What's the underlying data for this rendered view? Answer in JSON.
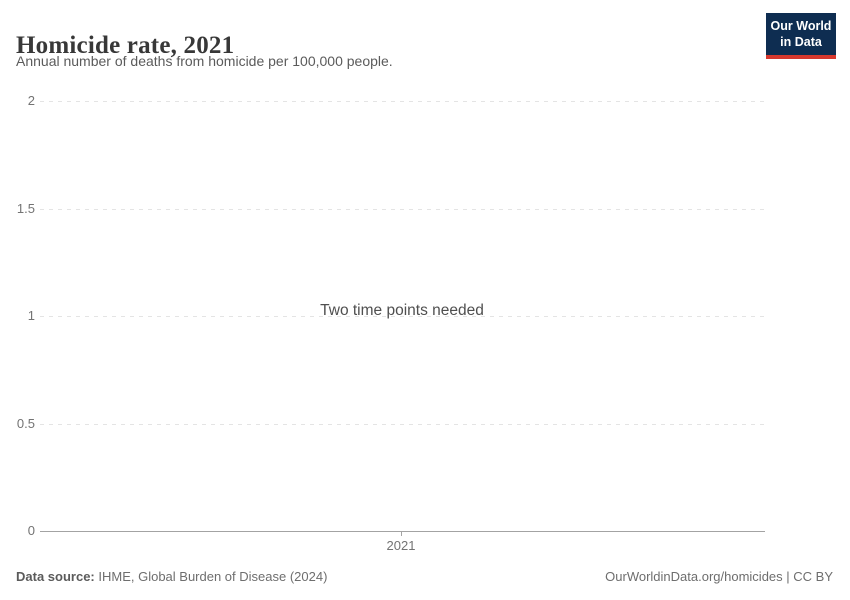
{
  "header": {
    "title": "Homicide rate, 2021",
    "subtitle": "Annual number of deaths from homicide per 100,000 people."
  },
  "logo": {
    "line1": "Our World",
    "line2": "in Data",
    "bg_color": "#0e2d51",
    "accent_color": "#d7382e"
  },
  "chart_data": {
    "type": "line",
    "title": "Homicide rate, 2021",
    "message": "Two time points needed",
    "series": [],
    "x": [
      2021
    ],
    "xticks": [
      "2021"
    ],
    "yticks": [
      "0",
      "0.5",
      "1",
      "1.5",
      "2"
    ],
    "ylim": [
      0,
      2
    ],
    "grid": "horizontal-dashed",
    "legend": "none"
  },
  "footer": {
    "source_label": "Data source:",
    "source_text": " IHME, Global Burden of Disease (2024)",
    "attribution": "OurWorldinData.org/homicides | CC BY"
  }
}
